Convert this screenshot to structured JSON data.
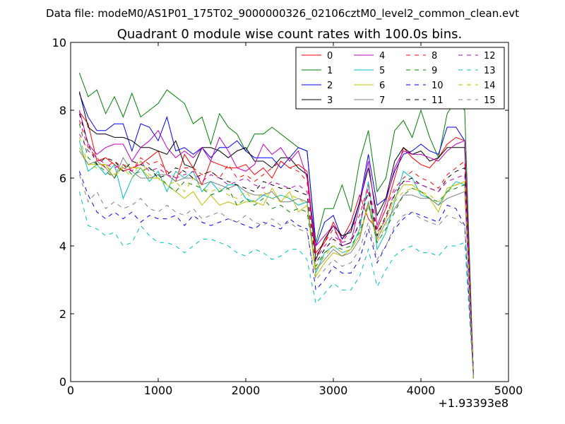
{
  "chart_data": {
    "type": "line",
    "suptitle": "Data file: modeM0/AS1P01_175T02_9000000326_02106cztM0_level2_common_clean.evt",
    "title": "Quadrant 0 module wise count rates with 100.0s bins.",
    "xlabel": "",
    "ylabel": "",
    "x_offset_label": "+1.93393e8",
    "xlim": [
      0,
      5000
    ],
    "ylim": [
      0,
      10
    ],
    "x_ticks": [
      0,
      1000,
      2000,
      3000,
      4000,
      5000
    ],
    "x_tick_labels": [
      "0",
      "1000",
      "2000",
      "3000",
      "4000",
      "5000"
    ],
    "y_ticks": [
      0,
      2,
      4,
      6,
      8,
      10
    ],
    "y_tick_labels": [
      "0",
      "2",
      "4",
      "6",
      "8",
      "10"
    ],
    "legend_position": "top-right",
    "x": [
      100,
      200,
      300,
      400,
      500,
      600,
      700,
      800,
      900,
      1000,
      1100,
      1200,
      1300,
      1400,
      1500,
      1600,
      1700,
      1800,
      1900,
      2000,
      2100,
      2200,
      2300,
      2400,
      2500,
      2600,
      2700,
      2800,
      2900,
      3000,
      3100,
      3200,
      3300,
      3400,
      3500,
      3600,
      3700,
      3800,
      3900,
      4000,
      4100,
      4200,
      4300,
      4400,
      4500,
      4600
    ],
    "series": [
      {
        "name": "0",
        "color": "#ff0000",
        "dash": "solid",
        "values": [
          7.95,
          7.6,
          6.5,
          6.6,
          6.4,
          6.2,
          6.3,
          6.4,
          6.6,
          6.8,
          6.1,
          5.9,
          6.7,
          6.3,
          5.8,
          6.5,
          6.4,
          6.3,
          6.3,
          6.4,
          6.1,
          6.3,
          6.0,
          6.5,
          6.3,
          6.4,
          6.2,
          3.8,
          4.1,
          4.7,
          4.2,
          4.7,
          5.5,
          4.8,
          4.5,
          5.1,
          6.0,
          6.9,
          6.6,
          6.4,
          6.3,
          6.6,
          7.0,
          7.2,
          7.1,
          0.2
        ]
      },
      {
        "name": "1",
        "color": "#008000",
        "dash": "solid",
        "values": [
          9.1,
          8.4,
          8.6,
          7.9,
          8.4,
          7.8,
          8.5,
          7.8,
          8.0,
          8.2,
          8.6,
          8.4,
          8.2,
          7.6,
          7.8,
          7.0,
          7.9,
          7.5,
          7.3,
          6.8,
          7.3,
          7.3,
          7.5,
          7.3,
          7.1,
          6.9,
          6.8,
          4.1,
          5.1,
          5.1,
          5.8,
          5.0,
          6.5,
          7.4,
          5.6,
          6.0,
          7.4,
          7.7,
          7.2,
          8.0,
          7.2,
          6.6,
          7.9,
          8.3,
          8.0,
          0.1
        ]
      },
      {
        "name": "2",
        "color": "#0000ff",
        "dash": "solid",
        "values": [
          8.5,
          7.8,
          7.4,
          7.4,
          7.6,
          7.6,
          6.8,
          7.6,
          7.5,
          7.1,
          7.8,
          6.8,
          6.9,
          6.7,
          6.9,
          6.6,
          6.9,
          6.9,
          7.1,
          6.8,
          6.6,
          6.6,
          6.6,
          6.3,
          6.6,
          6.9,
          6.8,
          4.0,
          4.7,
          4.9,
          4.2,
          4.5,
          5.3,
          6.7,
          5.2,
          5.4,
          6.2,
          6.7,
          6.8,
          7.0,
          6.8,
          6.7,
          7.5,
          7.5,
          7.1,
          0.1
        ]
      },
      {
        "name": "3",
        "color": "#000000",
        "dash": "solid",
        "values": [
          8.55,
          7.5,
          7.3,
          7.3,
          7.2,
          7.2,
          7.1,
          6.9,
          6.9,
          6.8,
          6.7,
          7.1,
          6.4,
          6.3,
          6.9,
          6.9,
          6.8,
          6.6,
          6.8,
          6.9,
          6.5,
          6.5,
          6.3,
          6.6,
          6.6,
          6.3,
          6.1,
          3.6,
          4.2,
          4.6,
          4.3,
          4.4,
          5.3,
          6.3,
          4.9,
          5.4,
          6.5,
          6.9,
          6.7,
          6.8,
          6.5,
          6.6,
          6.9,
          6.9,
          6.9,
          0.1
        ]
      },
      {
        "name": "4",
        "color": "#bf00bf",
        "dash": "solid",
        "values": [
          8.0,
          7.0,
          6.7,
          6.9,
          7.0,
          7.0,
          6.5,
          6.9,
          7.1,
          7.4,
          6.9,
          6.6,
          6.8,
          6.6,
          6.9,
          6.5,
          7.2,
          6.8,
          6.3,
          6.2,
          6.4,
          7.0,
          6.7,
          6.9,
          6.5,
          6.8,
          6.0,
          4.0,
          4.3,
          4.6,
          4.0,
          4.1,
          5.2,
          6.5,
          4.6,
          5.3,
          6.3,
          6.8,
          6.7,
          6.7,
          6.6,
          6.5,
          6.8,
          7.0,
          7.1,
          0.1
        ]
      },
      {
        "name": "5",
        "color": "#00bfbf",
        "dash": "solid",
        "values": [
          7.1,
          6.2,
          6.4,
          6.1,
          6.4,
          5.4,
          6.0,
          6.3,
          5.9,
          6.2,
          5.6,
          6.2,
          6.0,
          6.2,
          5.6,
          5.9,
          5.6,
          5.8,
          5.8,
          5.4,
          5.3,
          5.5,
          5.4,
          5.5,
          5.4,
          5.2,
          5.3,
          3.2,
          3.8,
          4.0,
          3.8,
          3.9,
          4.5,
          5.9,
          3.9,
          4.4,
          5.3,
          6.2,
          6.0,
          5.5,
          5.4,
          5.2,
          5.6,
          5.9,
          5.8,
          0.1
        ]
      },
      {
        "name": "6",
        "color": "#bfbf00",
        "dash": "solid",
        "values": [
          6.9,
          6.4,
          6.4,
          6.4,
          6.0,
          6.4,
          6.3,
          6.3,
          6.0,
          6.0,
          5.8,
          5.6,
          5.4,
          5.6,
          5.2,
          5.5,
          5.2,
          5.3,
          5.2,
          5.3,
          5.3,
          5.2,
          5.7,
          5.3,
          5.6,
          5.0,
          5.2,
          3.1,
          3.5,
          3.8,
          3.7,
          3.9,
          4.3,
          5.3,
          4.3,
          4.8,
          5.4,
          5.8,
          5.8,
          5.6,
          5.4,
          5.0,
          5.7,
          5.8,
          5.9,
          0.1
        ]
      },
      {
        "name": "7",
        "color": "#808080",
        "dash": "solid",
        "values": [
          6.8,
          6.4,
          6.5,
          6.3,
          6.0,
          6.6,
          6.2,
          6.0,
          6.0,
          6.1,
          6.1,
          5.9,
          6.0,
          6.0,
          5.8,
          5.9,
          5.8,
          5.7,
          5.8,
          5.6,
          5.5,
          5.5,
          5.6,
          5.3,
          5.3,
          5.4,
          5.3,
          3.3,
          3.6,
          3.9,
          3.7,
          3.8,
          4.2,
          5.3,
          4.2,
          4.7,
          5.1,
          5.5,
          5.5,
          5.4,
          5.4,
          5.2,
          5.4,
          5.5,
          5.6,
          0.1
        ]
      },
      {
        "name": "8",
        "color": "#ff0000",
        "dash": "dashed",
        "values": [
          7.7,
          6.9,
          6.6,
          6.3,
          6.5,
          6.3,
          6.2,
          6.6,
          6.4,
          6.5,
          6.2,
          6.0,
          6.3,
          6.3,
          6.1,
          6.2,
          6.0,
          6.4,
          6.0,
          6.1,
          5.9,
          6.1,
          6.3,
          6.5,
          6.3,
          6.2,
          5.9,
          3.7,
          4.1,
          4.5,
          4.1,
          4.5,
          4.9,
          5.8,
          4.5,
          5.1,
          5.7,
          6.0,
          6.2,
          6.0,
          5.9,
          5.7,
          6.1,
          6.3,
          6.5,
          0.2
        ]
      },
      {
        "name": "9",
        "color": "#008000",
        "dash": "dashed",
        "values": [
          7.6,
          6.6,
          6.4,
          6.2,
          6.0,
          6.4,
          6.1,
          6.2,
          6.3,
          6.1,
          5.8,
          5.6,
          5.9,
          5.8,
          5.7,
          5.5,
          5.6,
          5.7,
          5.2,
          5.4,
          5.2,
          5.4,
          5.1,
          5.2,
          5.0,
          5.1,
          5.0,
          3.4,
          3.8,
          4.0,
          3.9,
          4.0,
          4.4,
          5.2,
          4.1,
          4.5,
          5.0,
          5.5,
          5.7,
          5.6,
          5.4,
          5.3,
          5.6,
          5.7,
          5.8,
          0.1
        ]
      },
      {
        "name": "10",
        "color": "#0000ff",
        "dash": "dashed",
        "values": [
          6.2,
          5.5,
          5.0,
          4.8,
          5.0,
          4.8,
          5.0,
          4.7,
          4.9,
          4.8,
          4.8,
          4.9,
          4.6,
          4.9,
          4.7,
          4.6,
          4.7,
          4.8,
          4.7,
          4.6,
          4.5,
          4.7,
          4.6,
          4.5,
          4.8,
          4.6,
          4.5,
          2.7,
          3.0,
          3.4,
          3.2,
          3.2,
          3.6,
          4.5,
          3.5,
          4.0,
          4.5,
          4.8,
          5.0,
          4.9,
          4.8,
          4.7,
          5.2,
          5.1,
          4.6,
          0.1
        ]
      },
      {
        "name": "11",
        "color": "#000000",
        "dash": "dashed",
        "values": [
          7.9,
          7.0,
          6.4,
          6.6,
          6.5,
          6.2,
          6.5,
          6.4,
          6.3,
          6.0,
          6.1,
          6.3,
          6.2,
          6.0,
          6.1,
          6.2,
          6.0,
          5.9,
          5.8,
          5.7,
          5.6,
          5.9,
          5.8,
          5.7,
          5.7,
          5.6,
          5.5,
          3.5,
          3.9,
          4.2,
          4.0,
          4.1,
          4.7,
          5.6,
          4.3,
          4.9,
          5.5,
          5.9,
          6.0,
          5.8,
          5.7,
          5.6,
          6.0,
          6.2,
          6.3,
          0.1
        ]
      },
      {
        "name": "12",
        "color": "#bf00bf",
        "dash": "dashed",
        "values": [
          7.3,
          6.8,
          6.6,
          6.4,
          6.3,
          6.4,
          6.2,
          6.5,
          6.2,
          6.3,
          6.1,
          6.0,
          6.1,
          6.2,
          5.9,
          6.1,
          6.0,
          5.8,
          5.9,
          6.0,
          5.8,
          5.7,
          5.9,
          5.8,
          5.7,
          5.8,
          5.6,
          3.6,
          4.0,
          4.3,
          4.1,
          4.2,
          4.6,
          5.7,
          4.4,
          4.8,
          5.6,
          5.9,
          5.9,
          5.8,
          5.7,
          5.6,
          5.9,
          6.0,
          6.1,
          0.1
        ]
      },
      {
        "name": "13",
        "color": "#00bfbf",
        "dash": "dashed",
        "values": [
          5.6,
          4.6,
          4.5,
          4.3,
          4.4,
          4.0,
          4.1,
          4.6,
          4.3,
          4.1,
          4.1,
          4.0,
          3.8,
          4.0,
          4.2,
          4.2,
          4.1,
          4.0,
          3.8,
          3.7,
          3.9,
          3.8,
          3.6,
          3.7,
          3.9,
          3.9,
          3.6,
          2.3,
          2.6,
          2.9,
          2.7,
          2.7,
          3.1,
          3.9,
          2.8,
          3.3,
          3.7,
          3.9,
          4.0,
          3.8,
          3.8,
          3.7,
          4.0,
          4.0,
          4.1,
          0.1
        ]
      },
      {
        "name": "14",
        "color": "#bfbf00",
        "dash": "dashed",
        "values": [
          7.2,
          6.4,
          6.3,
          6.4,
          6.1,
          6.3,
          6.0,
          6.5,
          6.1,
          6.0,
          5.8,
          5.9,
          5.6,
          6.0,
          5.7,
          5.6,
          5.7,
          5.5,
          5.4,
          5.6,
          5.3,
          5.6,
          5.4,
          5.3,
          5.5,
          5.4,
          5.2,
          3.3,
          3.7,
          4.0,
          3.8,
          3.9,
          4.3,
          5.2,
          4.1,
          4.6,
          5.3,
          5.6,
          5.7,
          5.6,
          5.5,
          5.3,
          5.6,
          5.8,
          5.9,
          0.1
        ]
      },
      {
        "name": "15",
        "color": "#808080",
        "dash": "dashed",
        "values": [
          6.1,
          5.3,
          5.6,
          5.1,
          5.3,
          5.1,
          5.2,
          5.4,
          5.1,
          5.0,
          5.2,
          5.0,
          4.9,
          5.1,
          4.8,
          4.9,
          5.0,
          4.8,
          4.7,
          4.9,
          4.7,
          4.6,
          4.8,
          4.6,
          4.7,
          4.5,
          4.4,
          3.0,
          3.3,
          3.6,
          3.4,
          3.5,
          3.9,
          4.7,
          3.6,
          4.0,
          4.6,
          4.9,
          5.0,
          4.8,
          4.7,
          4.6,
          4.9,
          4.8,
          4.6,
          0.1
        ]
      }
    ]
  }
}
